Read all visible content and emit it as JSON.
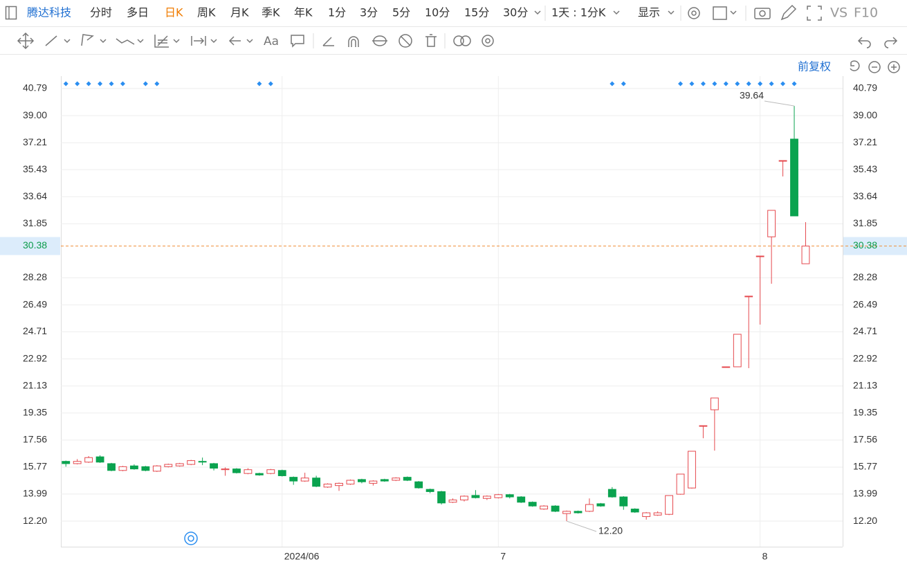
{
  "toolbar": {
    "stock": "腾达科技",
    "periods": [
      "分时",
      "多日",
      "日K",
      "周K",
      "月K",
      "季K",
      "年K",
      "1分",
      "3分",
      "5分",
      "10分",
      "15分",
      "30分"
    ],
    "range": "1天 : 1分K",
    "display": "显示",
    "vs": "VS",
    "f10": "F10",
    "draw_text": "Aa"
  },
  "adjust": "前复权",
  "chart_data": {
    "type": "candlestick",
    "categories": [
      null,
      null,
      null,
      null,
      null,
      null,
      null,
      null,
      null,
      null,
      null,
      null,
      null,
      null,
      null,
      null,
      null,
      null,
      null,
      "2024/06",
      null,
      null,
      null,
      null,
      null,
      null,
      null,
      null,
      null,
      null,
      null,
      null,
      null,
      null,
      null,
      null,
      null,
      null,
      "7",
      null,
      null,
      null,
      null,
      null,
      null,
      null,
      null,
      null,
      null,
      null,
      null,
      null,
      null,
      null,
      null,
      null,
      null,
      null,
      null,
      null,
      null,
      "8",
      null,
      null,
      null,
      null
    ],
    "open": [
      16.15,
      16.0,
      16.1,
      16.45,
      16.0,
      15.55,
      15.85,
      15.8,
      15.5,
      15.8,
      15.85,
      15.95,
      16.15,
      16.0,
      15.6,
      15.65,
      15.35,
      15.35,
      15.35,
      15.55,
      15.1,
      14.85,
      15.05,
      14.45,
      14.55,
      14.65,
      14.95,
      14.7,
      14.95,
      14.9,
      15.1,
      14.8,
      14.3,
      14.15,
      13.45,
      13.6,
      13.9,
      13.7,
      13.75,
      13.95,
      13.8,
      13.45,
      13.0,
      13.2,
      12.7,
      12.85,
      12.85,
      13.35,
      14.3,
      13.8,
      13.0,
      12.5,
      12.6,
      12.65,
      13.98,
      14.39,
      18.51,
      19.56,
      22.4,
      22.4,
      27.07,
      29.72,
      30.99,
      36.03,
      37.45,
      29.21
    ],
    "high": [
      16.2,
      16.3,
      16.5,
      16.55,
      16.05,
      15.85,
      15.95,
      15.85,
      15.9,
      16.0,
      16.05,
      16.25,
      16.4,
      16.05,
      15.75,
      15.7,
      15.7,
      15.4,
      15.65,
      15.6,
      15.15,
      15.4,
      15.2,
      14.7,
      14.75,
      14.95,
      15.0,
      14.9,
      15.0,
      15.1,
      15.15,
      14.85,
      14.35,
      14.2,
      13.7,
      13.9,
      14.25,
      13.9,
      14.0,
      14.0,
      13.85,
      13.5,
      13.25,
      13.25,
      12.9,
      12.9,
      13.7,
      13.4,
      14.45,
      13.85,
      13.05,
      12.8,
      12.85,
      13.89,
      15.31,
      16.82,
      18.51,
      20.34,
      22.4,
      24.55,
      27.07,
      29.72,
      32.74,
      36.03,
      39.64,
      31.96
    ],
    "low": [
      15.8,
      15.95,
      16.05,
      16.05,
      15.5,
      15.5,
      15.6,
      15.5,
      15.45,
      15.75,
      15.8,
      15.9,
      15.9,
      15.55,
      15.2,
      15.35,
      15.3,
      15.2,
      15.3,
      15.15,
      14.6,
      14.8,
      14.45,
      14.4,
      14.2,
      14.6,
      14.7,
      14.55,
      14.8,
      14.85,
      14.85,
      14.35,
      14.05,
      13.3,
      13.4,
      13.5,
      13.7,
      13.6,
      13.7,
      13.7,
      13.4,
      13.15,
      12.95,
      12.8,
      12.2,
      12.7,
      12.8,
      13.15,
      13.75,
      12.95,
      12.75,
      12.3,
      12.55,
      12.6,
      13.95,
      14.35,
      17.68,
      16.86,
      22.4,
      22.4,
      22.31,
      25.19,
      27.89,
      34.98,
      32.37,
      29.21
    ],
    "close": [
      16.0,
      16.15,
      16.4,
      16.1,
      15.55,
      15.8,
      15.65,
      15.55,
      15.85,
      15.95,
      16.0,
      16.2,
      16.1,
      15.7,
      15.65,
      15.4,
      15.6,
      15.25,
      15.6,
      15.2,
      14.85,
      15.05,
      14.5,
      14.65,
      14.7,
      14.9,
      14.8,
      14.85,
      14.85,
      15.05,
      14.9,
      14.4,
      14.15,
      13.4,
      13.6,
      13.85,
      13.75,
      13.85,
      13.95,
      13.8,
      13.45,
      13.2,
      13.2,
      12.85,
      12.85,
      12.75,
      13.3,
      13.2,
      13.8,
      13.2,
      12.8,
      12.75,
      12.75,
      13.89,
      15.31,
      16.82,
      18.51,
      20.34,
      22.4,
      24.55,
      27.07,
      29.72,
      32.74,
      36.03,
      32.37,
      30.38
    ],
    "up_color": "#e5484d",
    "down_color": "#0aa34f",
    "ylim": [
      10.51,
      41.61
    ],
    "yticks": [
      {
        "value": 12.2,
        "label": "12.20"
      },
      13.99,
      15.77,
      17.56,
      19.35,
      21.13,
      22.92,
      24.71,
      26.49,
      28.28,
      31.85,
      33.64,
      35.43,
      37.21,
      {
        "value": 39,
        "label": "39.00"
      },
      40.79
    ],
    "grid": true,
    "last_price": 30.38,
    "max_label": "39.64",
    "min_label": "12.20",
    "event_markers": [
      0,
      1,
      2,
      3,
      4,
      5,
      7,
      8,
      17,
      18,
      48,
      49,
      54,
      55,
      56,
      57,
      58,
      59,
      60,
      61,
      62,
      63,
      64
    ],
    "marker_color": "#2b8ef0"
  }
}
